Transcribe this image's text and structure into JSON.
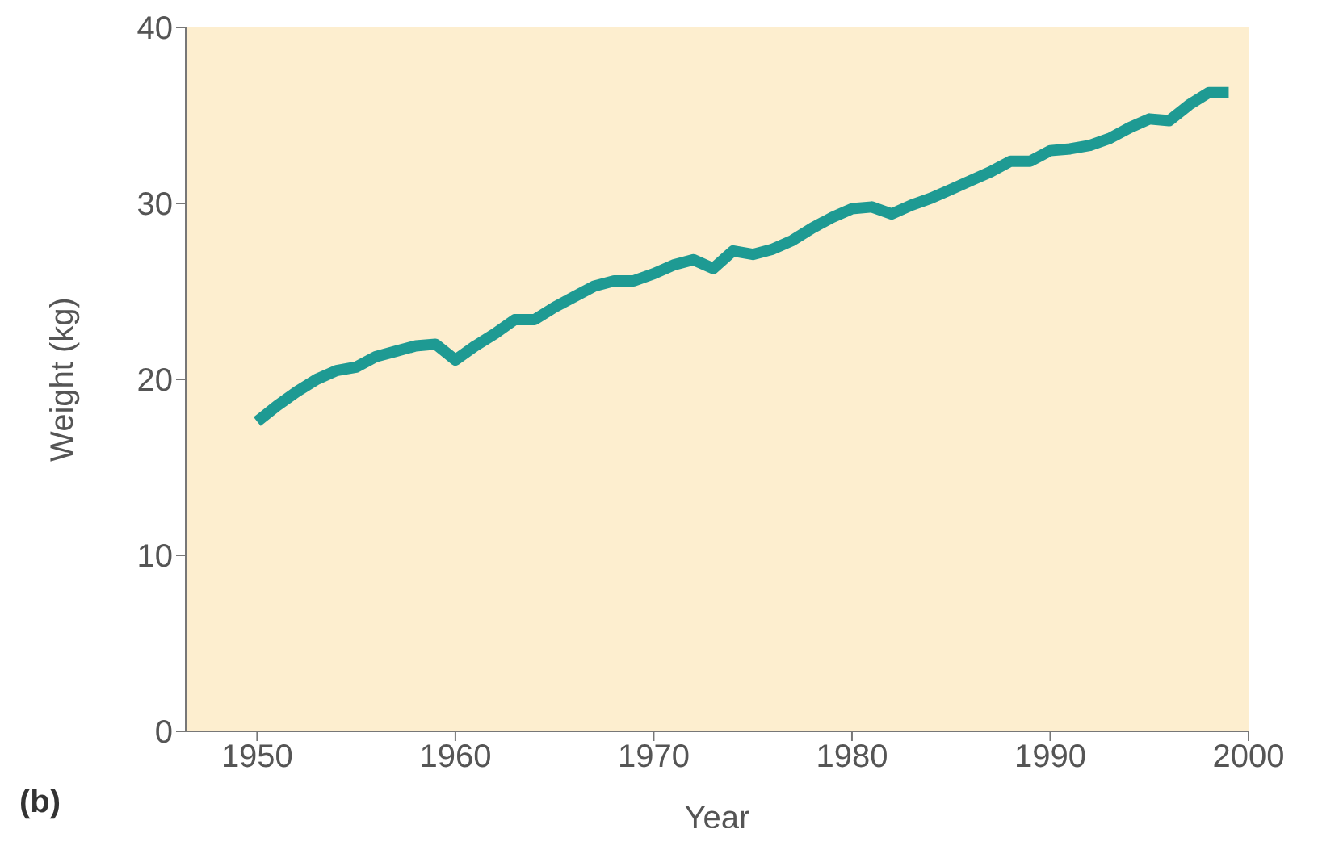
{
  "chart_data": {
    "type": "line",
    "xlabel": "Year",
    "ylabel": "Weight (kg)",
    "annotations": [
      "(b)"
    ],
    "x": [
      1950,
      1951,
      1952,
      1953,
      1954,
      1955,
      1956,
      1957,
      1958,
      1959,
      1960,
      1961,
      1962,
      1963,
      1964,
      1965,
      1966,
      1967,
      1968,
      1969,
      1970,
      1971,
      1972,
      1973,
      1974,
      1975,
      1976,
      1977,
      1978,
      1979,
      1980,
      1981,
      1982,
      1983,
      1984,
      1985,
      1986,
      1987,
      1988,
      1989,
      1990,
      1991,
      1992,
      1993,
      1994,
      1995,
      1996,
      1997,
      1998,
      1999
    ],
    "series": [
      {
        "color": "#1e9a93",
        "values": [
          17.6,
          18.5,
          19.3,
          20.0,
          20.5,
          20.7,
          21.3,
          21.6,
          21.9,
          22.0,
          21.1,
          21.9,
          22.6,
          23.4,
          23.4,
          24.1,
          24.7,
          25.3,
          25.6,
          25.6,
          26.0,
          26.5,
          26.8,
          26.3,
          27.3,
          27.1,
          27.4,
          27.9,
          28.6,
          29.2,
          29.7,
          29.8,
          29.4,
          29.9,
          30.3,
          30.8,
          31.3,
          31.8,
          32.4,
          32.4,
          33.0,
          33.1,
          33.3,
          33.7,
          34.3,
          34.8,
          34.7,
          35.6,
          36.3,
          36.3
        ]
      }
    ],
    "xlim": [
      1946.4,
      2000
    ],
    "xticks": [
      1950,
      1960,
      1970,
      1980,
      1990,
      2000
    ],
    "ylim": [
      0,
      40
    ],
    "yticks": [
      0,
      10,
      20,
      30,
      40
    ],
    "grid": false,
    "legend": false,
    "marker": "none",
    "line_style": "solid"
  }
}
